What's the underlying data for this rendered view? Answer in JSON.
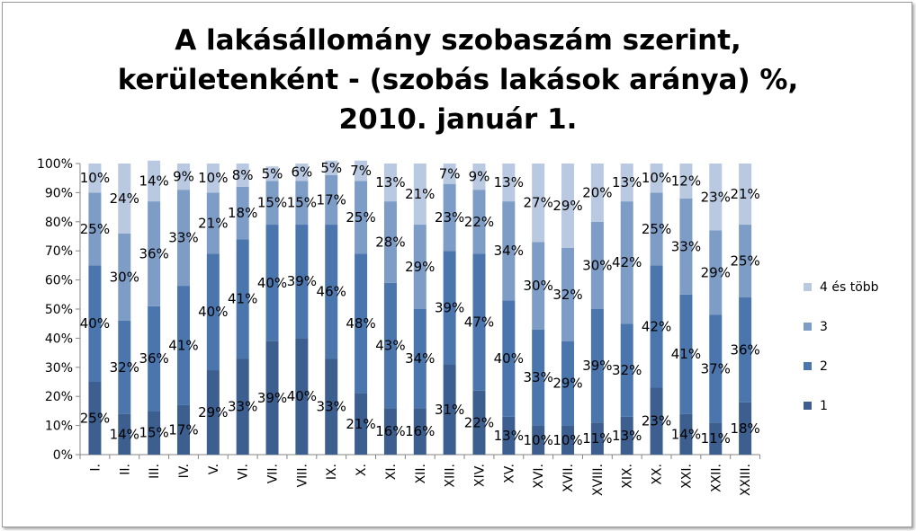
{
  "chart_data": {
    "type": "bar",
    "stacked": true,
    "percent": true,
    "title": [
      "A lakásállomány szobaszám szerint,",
      "kerületenként - (szobás lakások aránya) %,",
      "2010. január 1."
    ],
    "xlabel": "",
    "ylabel": "",
    "ylim": [
      0,
      100
    ],
    "yticks": [
      "0%",
      "10%",
      "20%",
      "30%",
      "40%",
      "50%",
      "60%",
      "70%",
      "80%",
      "90%",
      "100%"
    ],
    "categories": [
      "I.",
      "II.",
      "III.",
      "IV.",
      "V.",
      "VI.",
      "VII.",
      "VIII.",
      "IX.",
      "X.",
      "XI.",
      "XII.",
      "XIII.",
      "XIV.",
      "XV.",
      "XVI.",
      "XVII.",
      "XVIII.",
      "XIX.",
      "XX.",
      "XXI.",
      "XXII.",
      "XXIII."
    ],
    "legend_position": "right",
    "grid": false,
    "series": [
      {
        "name": "1",
        "color": "#3d5f8f",
        "values": [
          25,
          14,
          15,
          17,
          29,
          33,
          39,
          40,
          33,
          21,
          16,
          16,
          31,
          22,
          13,
          10,
          10,
          11,
          13,
          23,
          14,
          11,
          18
        ]
      },
      {
        "name": "2",
        "color": "#4a76ad",
        "values": [
          40,
          32,
          36,
          41,
          40,
          41,
          40,
          39,
          46,
          48,
          43,
          34,
          39,
          47,
          40,
          33,
          29,
          39,
          32,
          42,
          41,
          37,
          36
        ]
      },
      {
        "name": "3",
        "color": "#7d9cc6",
        "values": [
          25,
          30,
          36,
          33,
          21,
          18,
          15,
          15,
          17,
          25,
          28,
          29,
          23,
          22,
          34,
          30,
          32,
          30,
          42,
          25,
          33,
          29,
          25
        ]
      },
      {
        "name": "4 és több",
        "color": "#b8c9e1",
        "values": [
          10,
          24,
          14,
          9,
          10,
          8,
          5,
          6,
          5,
          7,
          13,
          21,
          7,
          9,
          13,
          27,
          29,
          20,
          13,
          10,
          12,
          23,
          21
        ]
      }
    ]
  }
}
